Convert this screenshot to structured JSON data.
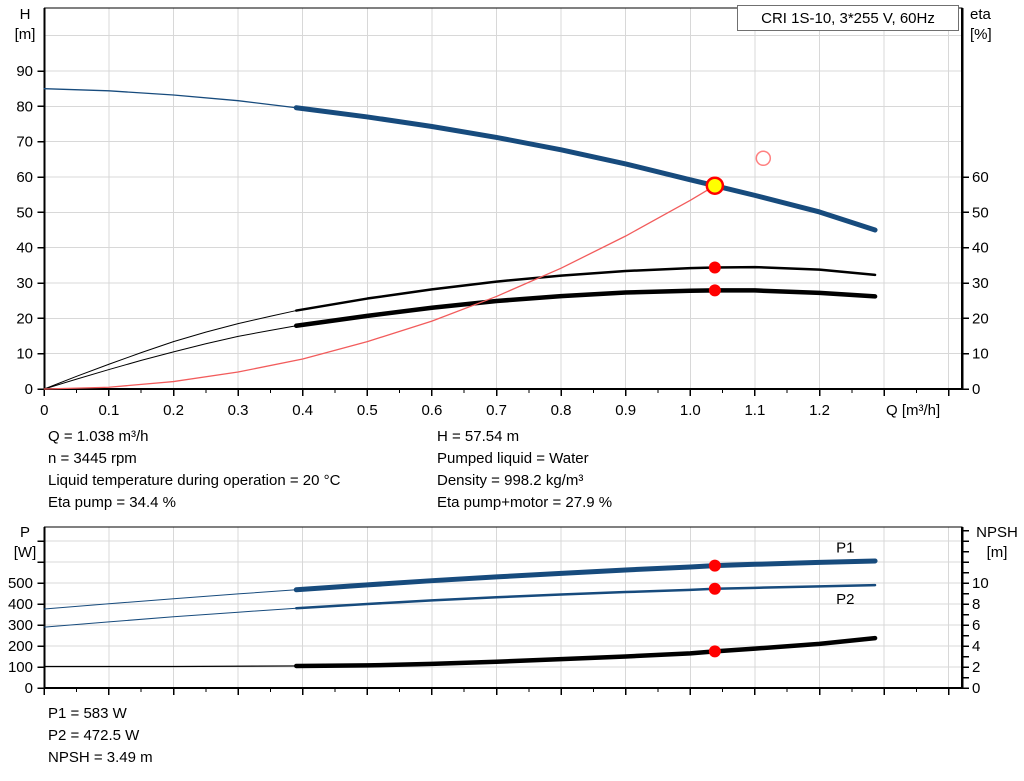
{
  "title_box": {
    "label": "CRI 1S-10, 3*255 V, 60Hz"
  },
  "colors": {
    "curve_blue": "#174b7d",
    "curve_black": "#000000",
    "curve_red": "#f25c5c",
    "marker_red": "#ff0000",
    "marker_yellow": "#ffff00",
    "hollow_red": "#ff8080",
    "label_blue": "#1f5fae",
    "grid": "#d8d8d8",
    "axis": "#000000"
  },
  "info_blocks": {
    "duty_left": [
      "Q = 1.038 m³/h",
      "n = 3445 rpm",
      "Liquid temperature during operation = 20 °C",
      "Eta pump = 34.4 %"
    ],
    "duty_right": [
      "H = 57.54 m",
      "Pumped liquid = Water",
      "Density = 998.2 kg/m³",
      "Eta pump+motor = 27.9 %"
    ],
    "power": [
      "P1 = 583 W",
      "P2 = 472.5 W",
      "NPSH = 3.49 m"
    ]
  },
  "chart_data": [
    {
      "type": "line",
      "title": "QH and efficiency curves",
      "xlabel": "Q [m³/h]",
      "ylabel_left": [
        "H",
        "[m]"
      ],
      "ylabel_right": [
        "eta",
        "[%]"
      ],
      "xlim": [
        0,
        1.421
      ],
      "ylim_left": [
        0,
        107.8
      ],
      "ylim_right": [
        0,
        107.8
      ],
      "grid": true,
      "xticks": {
        "values": [
          0,
          0.1,
          0.2,
          0.3,
          0.4,
          0.5,
          0.6,
          0.7,
          0.8,
          0.9,
          1.0,
          1.1,
          1.2,
          1.3,
          1.4
        ],
        "labeled_max": 1.2,
        "minor_step": 0.05
      },
      "yticks_left": [
        0,
        10,
        20,
        30,
        40,
        50,
        60,
        70,
        80,
        90
      ],
      "yticks_right": [
        0,
        10,
        20,
        30,
        40,
        50,
        60
      ],
      "ygrid": [
        10,
        20,
        30,
        40,
        50,
        60,
        70,
        80,
        90,
        100
      ],
      "series": [
        {
          "name": "qh-curve-full",
          "color": "#174b7d",
          "width": 1.3,
          "points": [
            [
              0,
              85.0
            ],
            [
              0.1,
              84.4
            ],
            [
              0.2,
              83.2
            ],
            [
              0.3,
              81.6
            ],
            [
              0.39,
              79.6
            ]
          ]
        },
        {
          "name": "qh-curve",
          "color": "#174b7d",
          "width": 5,
          "points": [
            [
              0.39,
              79.6
            ],
            [
              0.5,
              77.0
            ],
            [
              0.6,
              74.3
            ],
            [
              0.7,
              71.2
            ],
            [
              0.8,
              67.7
            ],
            [
              0.9,
              63.7
            ],
            [
              1.0,
              59.2
            ],
            [
              1.038,
              57.54
            ],
            [
              1.1,
              54.8
            ],
            [
              1.2,
              50.1
            ],
            [
              1.286,
              45.0
            ]
          ]
        },
        {
          "name": "eta-pump-curve-full",
          "color": "#000000",
          "width": 1,
          "points": [
            [
              0,
              0
            ],
            [
              0.05,
              3.6
            ],
            [
              0.1,
              7.0
            ],
            [
              0.15,
              10.3
            ],
            [
              0.2,
              13.4
            ],
            [
              0.25,
              16.1
            ],
            [
              0.3,
              18.5
            ],
            [
              0.35,
              20.6
            ],
            [
              0.39,
              22.2
            ]
          ]
        },
        {
          "name": "eta-pump-curve",
          "color": "#000000",
          "width": 2.5,
          "points": [
            [
              0.39,
              22.2
            ],
            [
              0.5,
              25.6
            ],
            [
              0.6,
              28.2
            ],
            [
              0.7,
              30.4
            ],
            [
              0.8,
              32.1
            ],
            [
              0.9,
              33.4
            ],
            [
              1.0,
              34.2
            ],
            [
              1.038,
              34.4
            ],
            [
              1.1,
              34.5
            ],
            [
              1.2,
              33.8
            ],
            [
              1.286,
              32.3
            ]
          ]
        },
        {
          "name": "eta-pump-motor-curve-full",
          "color": "#000000",
          "width": 1,
          "points": [
            [
              0,
              0
            ],
            [
              0.05,
              2.8
            ],
            [
              0.1,
              5.5
            ],
            [
              0.15,
              8.1
            ],
            [
              0.2,
              10.5
            ],
            [
              0.25,
              12.8
            ],
            [
              0.3,
              14.9
            ],
            [
              0.35,
              16.6
            ],
            [
              0.39,
              17.9
            ]
          ]
        },
        {
          "name": "eta-pump-motor-curve",
          "color": "#000000",
          "width": 4.5,
          "points": [
            [
              0.39,
              17.9
            ],
            [
              0.5,
              20.7
            ],
            [
              0.6,
              23.0
            ],
            [
              0.7,
              24.9
            ],
            [
              0.8,
              26.3
            ],
            [
              0.9,
              27.3
            ],
            [
              1.0,
              27.8
            ],
            [
              1.038,
              27.9
            ],
            [
              1.1,
              27.9
            ],
            [
              1.2,
              27.2
            ],
            [
              1.286,
              26.2
            ]
          ]
        },
        {
          "name": "system-curve",
          "color": "#f25c5c",
          "width": 1.3,
          "points": [
            [
              0,
              0
            ],
            [
              0.1,
              0.5
            ],
            [
              0.2,
              2.1
            ],
            [
              0.3,
              4.8
            ],
            [
              0.4,
              8.5
            ],
            [
              0.5,
              13.4
            ],
            [
              0.6,
              19.2
            ],
            [
              0.7,
              26.2
            ],
            [
              0.8,
              34.2
            ],
            [
              0.9,
              43.3
            ],
            [
              1.0,
              53.4
            ],
            [
              1.038,
              57.54
            ]
          ]
        }
      ],
      "markers": [
        {
          "name": "duty-point",
          "x": 1.038,
          "y": 57.54,
          "r": 8,
          "fill": "#ffff00",
          "stroke": "#ff0000",
          "stroke_width": 2.5
        },
        {
          "name": "target-point-hollow",
          "x": 1.113,
          "y": 65.3,
          "r": 7,
          "fill": "none",
          "stroke": "#ff8080",
          "stroke_width": 1.5
        },
        {
          "name": "eta-pump-point",
          "x": 1.038,
          "y": 34.4,
          "r": 6,
          "fill": "#ff0000",
          "stroke": "none",
          "stroke_width": 0
        },
        {
          "name": "eta-pump-motor-point",
          "x": 1.038,
          "y": 27.9,
          "r": 6,
          "fill": "#ff0000",
          "stroke": "none",
          "stroke_width": 0
        }
      ]
    },
    {
      "type": "line",
      "title": "Power and NPSH curves",
      "xlabel": "",
      "ylabel_left": [
        "P",
        "[W]"
      ],
      "ylabel_right": [
        "NPSH",
        "[m]"
      ],
      "xlim": [
        0,
        1.421
      ],
      "ylim_left": [
        0,
        766
      ],
      "ylim_right": [
        0,
        15.3
      ],
      "grid": true,
      "xticks": {
        "values": [
          0,
          0.1,
          0.2,
          0.3,
          0.4,
          0.5,
          0.6,
          0.7,
          0.8,
          0.9,
          1.0,
          1.1,
          1.2,
          1.3,
          1.4
        ],
        "labeled_max": -1,
        "minor_step": 0.05
      },
      "yticks_left": {
        "values": [
          0,
          100,
          200,
          300,
          400,
          500,
          600,
          700
        ],
        "labeled_max": 500
      },
      "yticks_right": {
        "values": [
          0,
          1,
          2,
          3,
          4,
          5,
          6,
          7,
          8,
          9,
          10,
          11,
          12,
          13,
          14,
          15
        ],
        "labeled": [
          0,
          2,
          4,
          6,
          8,
          10
        ]
      },
      "ygrid": [
        100,
        200,
        300,
        400,
        500,
        600,
        700
      ],
      "series": [
        {
          "name": "p1-curve-full",
          "axis": "P",
          "color": "#174b7d",
          "width": 1,
          "points": [
            [
              0,
              376
            ],
            [
              0.1,
              401
            ],
            [
              0.2,
              425
            ],
            [
              0.3,
              448
            ],
            [
              0.39,
              468
            ]
          ]
        },
        {
          "name": "p1-curve",
          "axis": "P",
          "color": "#174b7d",
          "width": 5,
          "points": [
            [
              0.39,
              468
            ],
            [
              0.5,
              491
            ],
            [
              0.6,
              511
            ],
            [
              0.7,
              529
            ],
            [
              0.8,
              546
            ],
            [
              0.9,
              562
            ],
            [
              1.0,
              576
            ],
            [
              1.038,
              583
            ],
            [
              1.1,
              589
            ],
            [
              1.2,
              598
            ],
            [
              1.286,
              605
            ]
          ]
        },
        {
          "name": "p2-curve-full",
          "axis": "P",
          "color": "#174b7d",
          "width": 1,
          "points": [
            [
              0,
              290
            ],
            [
              0.1,
              315
            ],
            [
              0.2,
              339
            ],
            [
              0.3,
              361
            ],
            [
              0.39,
              380
            ]
          ]
        },
        {
          "name": "p2-curve",
          "axis": "P",
          "color": "#174b7d",
          "width": 2.5,
          "points": [
            [
              0.39,
              380
            ],
            [
              0.5,
              400
            ],
            [
              0.6,
              417
            ],
            [
              0.7,
              432
            ],
            [
              0.8,
              445
            ],
            [
              0.9,
              457
            ],
            [
              1.0,
              467
            ],
            [
              1.038,
              472.5
            ],
            [
              1.1,
              477
            ],
            [
              1.2,
              484
            ],
            [
              1.286,
              490
            ]
          ]
        },
        {
          "name": "npsh-curve-full",
          "axis": "NPSH",
          "color": "#000000",
          "width": 1.2,
          "points": [
            [
              0,
              2.05
            ],
            [
              0.2,
              2.05
            ],
            [
              0.39,
              2.1
            ]
          ]
        },
        {
          "name": "npsh-curve",
          "axis": "NPSH",
          "color": "#000000",
          "width": 4.5,
          "points": [
            [
              0.39,
              2.1
            ],
            [
              0.5,
              2.15
            ],
            [
              0.6,
              2.3
            ],
            [
              0.7,
              2.5
            ],
            [
              0.8,
              2.75
            ],
            [
              0.9,
              3.0
            ],
            [
              1.0,
              3.3
            ],
            [
              1.038,
              3.49
            ],
            [
              1.1,
              3.75
            ],
            [
              1.2,
              4.2
            ],
            [
              1.286,
              4.75
            ]
          ]
        }
      ],
      "markers": [
        {
          "name": "p1-point",
          "axis": "P",
          "x": 1.038,
          "y": 583,
          "r": 6,
          "fill": "#ff0000",
          "stroke": "none",
          "stroke_width": 0
        },
        {
          "name": "p2-point",
          "axis": "P",
          "x": 1.038,
          "y": 472.5,
          "r": 6,
          "fill": "#ff0000",
          "stroke": "none",
          "stroke_width": 0
        },
        {
          "name": "npsh-point",
          "axis": "NPSH",
          "x": 1.038,
          "y": 3.49,
          "r": 6,
          "fill": "#ff0000",
          "stroke": "none",
          "stroke_width": 0
        }
      ],
      "curve_labels": [
        {
          "text": "P1",
          "axis": "P",
          "x": 1.24,
          "y": 645
        },
        {
          "text": "P2",
          "axis": "P",
          "x": 1.24,
          "y": 400
        }
      ]
    }
  ]
}
